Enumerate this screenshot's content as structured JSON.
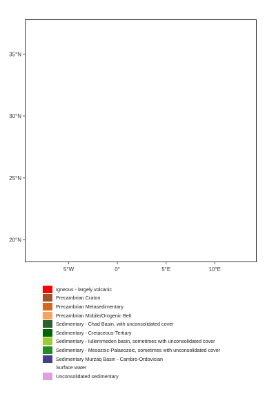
{
  "map": {
    "axes": {
      "y_ticks": [
        {
          "value": 35,
          "label": "35°N"
        },
        {
          "value": 30,
          "label": "30°N"
        },
        {
          "value": 25,
          "label": "25°N"
        },
        {
          "value": 20,
          "label": "20°N"
        }
      ],
      "x_ticks": [
        {
          "value": -5,
          "label": "5°W"
        },
        {
          "value": 0,
          "label": "0°"
        },
        {
          "value": 5,
          "label": "5°E"
        },
        {
          "value": 10,
          "label": "10°E"
        }
      ],
      "lon_range": [
        -9.5,
        14.3
      ],
      "lat_range": [
        18.2,
        37.8
      ]
    },
    "colors": {
      "igneous": "#ff0000",
      "craton": "#a0522d",
      "metased": "#d2691e",
      "mobile": "#f4a460",
      "chad": "#2e5e2e",
      "cretaceous": "#006400",
      "iullemmeden": "#9acd32",
      "mesozoic": "#228b22",
      "murzaq": "#483d8b",
      "water": "#ffffff",
      "unconsolidated": "#dda0dd"
    }
  },
  "legend": [
    {
      "label": "Igneous - largely volcanic",
      "color": "#ff0000"
    },
    {
      "label": "Precambrian Craton",
      "color": "#a0522d"
    },
    {
      "label": "Precambrian Metasedimentary",
      "color": "#d2691e"
    },
    {
      "label": "Precambrian Mobile/Orogenic Belt",
      "color": "#f4a460"
    },
    {
      "label": "Sedimentary - Chad Basin, with unconsolidated cover",
      "color": "#2e5e2e"
    },
    {
      "label": "Sedimentary - Cretaceous-Tertiary",
      "color": "#006400"
    },
    {
      "label": "Sedimentary - Iullemmeden basin, sometimes with unconsolidated cover",
      "color": "#9acd32"
    },
    {
      "label": "Sedimentary - Mesozoic-Palaeozoic, sometimes with unconsolidated cover",
      "color": "#228b22"
    },
    {
      "label": "Sedimentary Murzaq Basin - Cambro-Ordovician",
      "color": "#483d8b"
    },
    {
      "label": "Surface water",
      "color": "#ffffff"
    },
    {
      "label": "Unconsolidated sedimentary",
      "color": "#dda0dd"
    }
  ]
}
